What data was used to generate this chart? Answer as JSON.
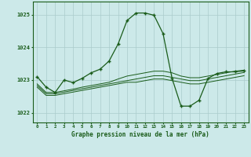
{
  "title": "Graphe pression niveau de la mer (hPa)",
  "background_color": "#cce9e9",
  "grid_color": "#aacccc",
  "line_color": "#1a5c1a",
  "x_labels": [
    "0",
    "1",
    "2",
    "3",
    "4",
    "5",
    "6",
    "7",
    "8",
    "9",
    "10",
    "11",
    "12",
    "13",
    "14",
    "15",
    "16",
    "17",
    "18",
    "19",
    "20",
    "21",
    "22",
    "23"
  ],
  "ylim": [
    1021.7,
    1025.4
  ],
  "yticks": [
    1022,
    1023,
    1024,
    1025
  ],
  "series": {
    "main": [
      1023.1,
      1022.78,
      1022.62,
      1023.0,
      1022.92,
      1023.05,
      1023.22,
      1023.33,
      1023.58,
      1024.1,
      1024.82,
      1025.05,
      1025.05,
      1024.98,
      1024.42,
      1023.05,
      1022.2,
      1022.2,
      1022.38,
      1023.05,
      1023.2,
      1023.25,
      1023.25,
      1023.28
    ],
    "line2": [
      1022.88,
      1022.62,
      1022.62,
      1022.67,
      1022.72,
      1022.78,
      1022.83,
      1022.88,
      1022.93,
      1023.03,
      1023.12,
      1023.17,
      1023.22,
      1023.27,
      1023.27,
      1023.22,
      1023.12,
      1023.07,
      1023.07,
      1023.12,
      1023.17,
      1023.22,
      1023.27,
      1023.3
    ],
    "line3": [
      1022.83,
      1022.58,
      1022.58,
      1022.63,
      1022.68,
      1022.73,
      1022.78,
      1022.83,
      1022.88,
      1022.93,
      1022.98,
      1023.03,
      1023.08,
      1023.13,
      1023.13,
      1023.08,
      1023.03,
      1022.98,
      1022.98,
      1023.03,
      1023.08,
      1023.13,
      1023.18,
      1023.23
    ],
    "line4": [
      1022.78,
      1022.53,
      1022.53,
      1022.58,
      1022.63,
      1022.68,
      1022.73,
      1022.78,
      1022.83,
      1022.88,
      1022.93,
      1022.93,
      1022.98,
      1023.03,
      1023.03,
      1022.98,
      1022.93,
      1022.88,
      1022.88,
      1022.93,
      1022.98,
      1023.03,
      1023.08,
      1023.13
    ]
  }
}
